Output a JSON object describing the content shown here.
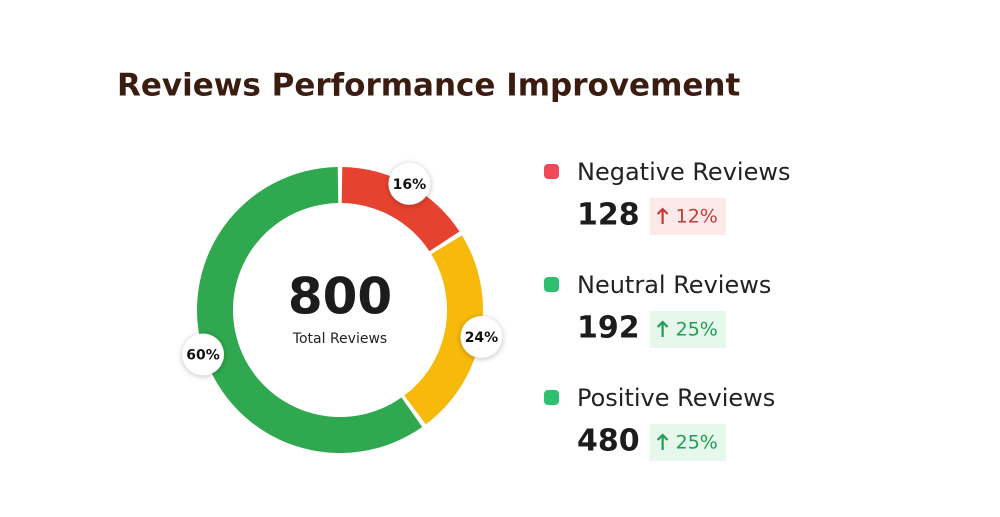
{
  "chart_data": {
    "type": "donut",
    "title": "Reviews Performance Improvement",
    "total": 800,
    "total_label": "Total Reviews",
    "categories": [
      "Negative Reviews",
      "Neutral Reviews",
      "Positive Reviews"
    ],
    "values": [
      16,
      24,
      60
    ],
    "value_labels": [
      "16%",
      "24%",
      "60%"
    ],
    "colors": [
      "#e5432f",
      "#f7b90a",
      "#2fa84f"
    ],
    "legend_colors": [
      "#f2485a",
      "#2fbf71",
      "#2fbf71"
    ],
    "counts": [
      128,
      192,
      480
    ],
    "changes": [
      "12%",
      "25%",
      "25%"
    ],
    "change_colors": [
      "#c43c36",
      "#1e9e54",
      "#1e9e54"
    ],
    "change_backgrounds": [
      "#fde9e9",
      "#e6f7ec",
      "#e6f7ec"
    ]
  }
}
